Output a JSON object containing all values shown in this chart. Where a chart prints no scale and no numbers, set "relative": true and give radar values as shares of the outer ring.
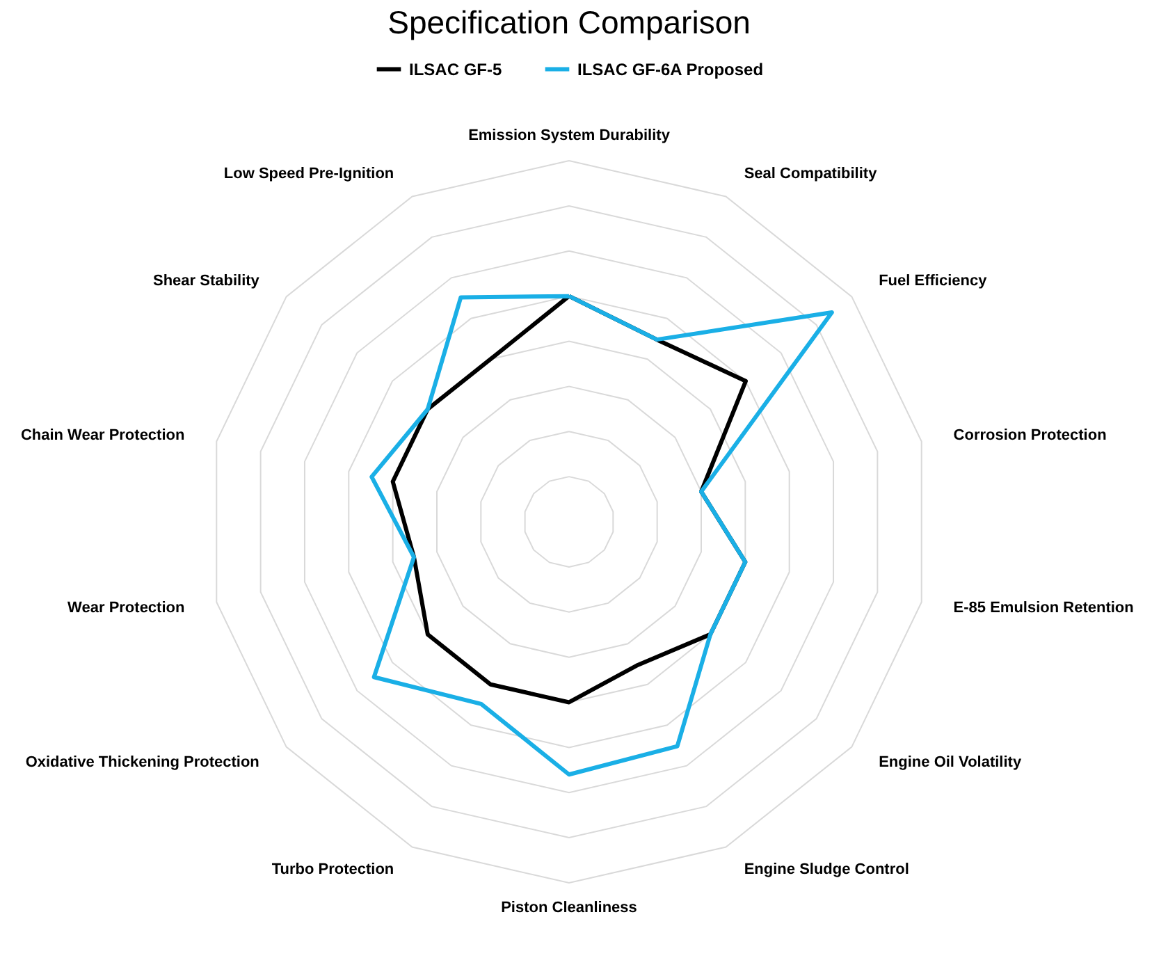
{
  "chart_data": {
    "type": "radar",
    "title": "Specification Comparison",
    "relative": true,
    "grid": true,
    "legend": "top",
    "categories": [
      "Emission System Durability",
      "Seal Compatibility",
      "Fuel Efficiency",
      "Corrosion Protection",
      "E-85 Emulsion Retention",
      "Engine Oil Volatility",
      "Engine Sludge Control",
      "Piston Cleanliness",
      "Turbo Protection",
      "Oxidative Thickening Protection",
      "Wear Protection",
      "Chain Wear Protection",
      "Shear Stability",
      "Low Speed Pre-Ignition"
    ],
    "series": [
      {
        "name": "ILSAC GF-5",
        "color": "#000000",
        "values": [
          0.625,
          0.56,
          0.625,
          0.375,
          0.5,
          0.5,
          0.44,
          0.5,
          0.5,
          0.5,
          0.44,
          0.5,
          0.5,
          0.5
        ]
      },
      {
        "name": "ILSAC GF-6A Proposed",
        "color": "#1aafe6",
        "values": [
          0.625,
          0.56,
          0.93,
          0.375,
          0.5,
          0.5,
          0.69,
          0.7,
          0.56,
          0.69,
          0.44,
          0.56,
          0.5,
          0.69
        ]
      }
    ]
  }
}
